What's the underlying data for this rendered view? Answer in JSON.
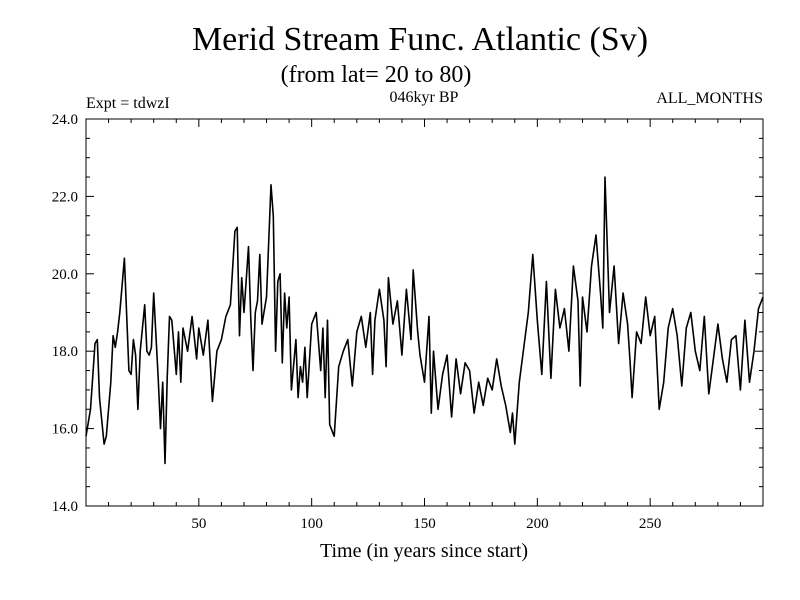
{
  "chart_data": {
    "type": "line",
    "title": "Merid Stream Func. Atlantic (Sv)",
    "subtitle": "(from lat= 20 to 80)",
    "annotations": {
      "left": "Expt = tdwzI",
      "center": "046kyr BP",
      "right": "ALL_MONTHS"
    },
    "xlabel": "Time (in years since start)",
    "ylabel": "",
    "xlim": [
      0,
      300
    ],
    "ylim": [
      14.0,
      24.0
    ],
    "x_ticks": [
      50,
      100,
      150,
      200,
      250
    ],
    "x_tick_labels": [
      "50",
      "100",
      "150",
      "200",
      "250"
    ],
    "y_ticks": [
      14,
      16,
      18,
      20,
      22,
      24
    ],
    "y_tick_labels": [
      "14.0",
      "16.0",
      "18.0",
      "20.0",
      "22.0",
      "24.0"
    ],
    "grid": false,
    "series": [
      {
        "name": "Merid Stream Func. Atlantic",
        "color": "#000000",
        "x": [
          0,
          2,
          4,
          5,
          6,
          8,
          9,
          11,
          12,
          13,
          14,
          15,
          17,
          19,
          20,
          21,
          22,
          23,
          24,
          26,
          27,
          28,
          29,
          30,
          32,
          33,
          34,
          35,
          36,
          37,
          38,
          40,
          41,
          42,
          43,
          45,
          47,
          49,
          50,
          52,
          54,
          56,
          58,
          60,
          62,
          64,
          66,
          67,
          68,
          69,
          70,
          72,
          73,
          74,
          75,
          76,
          77,
          78,
          80,
          82,
          83,
          84,
          85,
          86,
          87,
          88,
          89,
          90,
          91,
          93,
          94,
          95,
          96,
          97,
          98,
          100,
          102,
          104,
          105,
          106,
          107,
          108,
          110,
          112,
          114,
          116,
          118,
          120,
          122,
          124,
          126,
          127,
          128,
          130,
          132,
          133,
          134,
          136,
          138,
          140,
          142,
          144,
          145,
          147,
          148,
          150,
          152,
          153,
          154,
          156,
          158,
          160,
          162,
          164,
          166,
          168,
          170,
          172,
          174,
          176,
          178,
          180,
          182,
          184,
          186,
          188,
          189,
          190,
          191,
          192,
          194,
          196,
          198,
          200,
          202,
          204,
          206,
          208,
          210,
          212,
          214,
          216,
          218,
          219,
          220,
          222,
          224,
          226,
          228,
          229,
          230,
          232,
          234,
          236,
          238,
          240,
          241,
          242,
          244,
          246,
          248,
          250,
          252,
          254,
          256,
          258,
          260,
          262,
          264,
          266,
          268,
          270,
          272,
          274,
          276,
          278,
          280,
          282,
          284,
          286,
          288,
          290,
          292,
          294,
          296,
          298,
          300
        ],
        "y": [
          15.8,
          16.5,
          18.2,
          18.3,
          16.8,
          15.6,
          15.8,
          17.2,
          18.4,
          18.1,
          18.5,
          19.0,
          20.4,
          17.5,
          17.4,
          18.3,
          17.9,
          16.5,
          18.0,
          19.2,
          18.0,
          17.9,
          18.1,
          19.5,
          17.3,
          16.0,
          17.2,
          15.1,
          17.3,
          18.9,
          18.8,
          17.4,
          18.5,
          17.2,
          18.6,
          18.0,
          18.9,
          17.8,
          18.6,
          17.9,
          18.8,
          16.7,
          18.0,
          18.3,
          18.9,
          19.2,
          21.1,
          21.2,
          18.4,
          19.9,
          19.0,
          20.7,
          18.9,
          17.5,
          19.0,
          19.3,
          20.5,
          18.7,
          19.4,
          22.3,
          21.5,
          18.0,
          19.8,
          20.0,
          17.7,
          19.5,
          18.6,
          19.4,
          17.0,
          18.3,
          16.8,
          17.6,
          17.2,
          18.1,
          16.8,
          18.7,
          19.0,
          17.5,
          18.6,
          16.8,
          18.8,
          16.1,
          15.8,
          17.6,
          18.0,
          18.3,
          17.1,
          18.5,
          18.9,
          18.1,
          19.0,
          17.4,
          18.8,
          19.6,
          18.8,
          17.6,
          19.9,
          18.7,
          19.3,
          17.9,
          19.6,
          18.3,
          20.1,
          18.5,
          17.9,
          17.2,
          18.9,
          16.4,
          18.0,
          16.5,
          17.4,
          17.9,
          16.3,
          17.8,
          16.9,
          17.7,
          17.5,
          16.4,
          17.2,
          16.6,
          17.3,
          17.0,
          17.8,
          17.1,
          16.6,
          15.9,
          16.4,
          15.6,
          16.4,
          17.2,
          18.1,
          19.0,
          20.5,
          18.8,
          17.4,
          19.8,
          17.3,
          19.6,
          18.6,
          19.1,
          18.0,
          20.2,
          19.3,
          17.1,
          19.4,
          18.5,
          20.2,
          21.0,
          19.5,
          18.6,
          22.5,
          19.0,
          20.2,
          18.2,
          19.5,
          18.7,
          17.8,
          16.8,
          18.5,
          18.2,
          19.4,
          18.4,
          18.9,
          16.5,
          17.2,
          18.6,
          19.1,
          18.4,
          17.1,
          18.6,
          19.0,
          18.0,
          17.5,
          18.9,
          16.9,
          17.8,
          18.7,
          17.8,
          17.2,
          18.3,
          18.4,
          17.0,
          18.8,
          17.2,
          18.0,
          19.1,
          19.4
        ]
      }
    ]
  }
}
